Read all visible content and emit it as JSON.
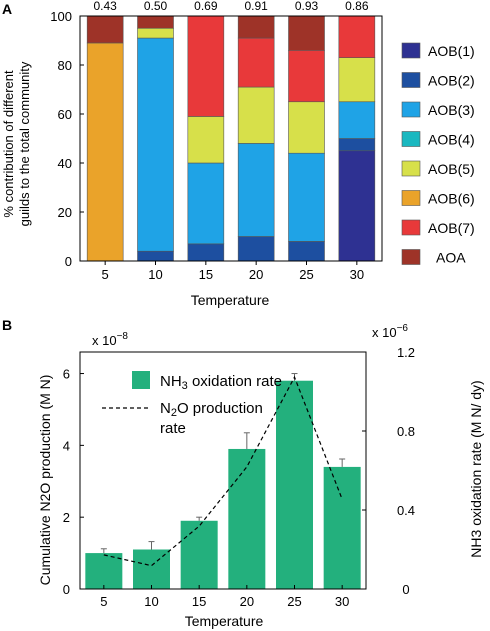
{
  "panel_a": {
    "label": "A",
    "ylabel_line1": "% contribution of different",
    "ylabel_line2": "guilds to the total community",
    "xlabel": "Temperature"
  },
  "panel_b": {
    "label": "B",
    "ylabel_left": "Cumulative N2O production (M N)",
    "ylabel_right": "NH3 oxidation rate (M N/ dy)",
    "xlabel": "Temperature",
    "left_multiplier": "x 10",
    "left_exponent": "−8",
    "right_multiplier": "x 10",
    "right_exponent": "−6",
    "legend_bar_main": "NH",
    "legend_bar_sub": "3",
    "legend_bar_rest": " oxidation rate",
    "legend_line_main": "N",
    "legend_line_sub": "2",
    "legend_line_rest": "O production",
    "legend_line_wrap": "rate"
  },
  "colors": {
    "AOB(1)": "#2e3192",
    "AOB(2)": "#1d4fa0",
    "AOB(3)": "#1fa3e6",
    "AOB(4)": "#1ab8c0",
    "AOB(5)": "#d7e04a",
    "AOB(6)": "#eaa32a",
    "AOB(7)": "#e8393a",
    "AOA": "#9e3328",
    "bar_b": "#23b07d",
    "axis": "#000000"
  },
  "chart_data": [
    {
      "type": "bar",
      "stacked": true,
      "xlabel": "Temperature",
      "ylabel": "% contribution of different guilds to the total community",
      "categories": [
        "5",
        "10",
        "15",
        "20",
        "25",
        "30"
      ],
      "top_labels": [
        "0.43",
        "0.50",
        "0.69",
        "0.91",
        "0.93",
        "0.86"
      ],
      "ylim": [
        0,
        100
      ],
      "yticks": [
        0,
        20,
        40,
        60,
        80,
        100
      ],
      "legend_position": "right",
      "series": [
        {
          "name": "AOB(1)",
          "values": [
            0,
            0,
            0,
            0,
            0,
            45
          ]
        },
        {
          "name": "AOB(2)",
          "values": [
            0,
            4,
            7,
            10,
            8,
            5
          ]
        },
        {
          "name": "AOB(3)",
          "values": [
            0,
            87,
            33,
            38,
            36,
            15
          ]
        },
        {
          "name": "AOB(4)",
          "values": [
            0,
            0,
            0,
            0,
            0,
            0
          ]
        },
        {
          "name": "AOB(5)",
          "values": [
            0,
            4,
            19,
            23,
            21,
            18
          ]
        },
        {
          "name": "AOB(6)",
          "values": [
            89,
            0,
            0,
            0,
            0,
            0
          ]
        },
        {
          "name": "AOB(7)",
          "values": [
            0,
            0,
            41,
            20,
            21,
            17
          ]
        },
        {
          "name": "AOA",
          "values": [
            11,
            5,
            0,
            9,
            14,
            0
          ]
        }
      ]
    },
    {
      "type": "bar",
      "xlabel": "Temperature",
      "ylabel": "Cumulative N2O production (M N)",
      "y2label": "NH3 oxidation rate (M N/ dy)",
      "categories": [
        "5",
        "10",
        "15",
        "20",
        "25",
        "30"
      ],
      "ylim": [
        0,
        6.6
      ],
      "yticks": [
        0,
        2,
        4,
        6
      ],
      "y2lim": [
        0,
        1.2
      ],
      "y2ticks": [
        "0",
        "0.4",
        "0.8",
        "1.2"
      ],
      "series": [
        {
          "name": "NH3 oxidation rate",
          "kind": "bar",
          "axis": "left",
          "values": [
            1.0,
            1.1,
            1.9,
            3.9,
            5.8,
            3.4
          ],
          "errors": [
            0.12,
            0.22,
            0.1,
            0.45,
            0.2,
            0.22
          ]
        },
        {
          "name": "N2O production rate",
          "kind": "line",
          "axis": "left",
          "values": [
            0.95,
            0.65,
            1.75,
            3.4,
            5.9,
            2.5
          ]
        }
      ],
      "legend_position": "top-left"
    }
  ]
}
